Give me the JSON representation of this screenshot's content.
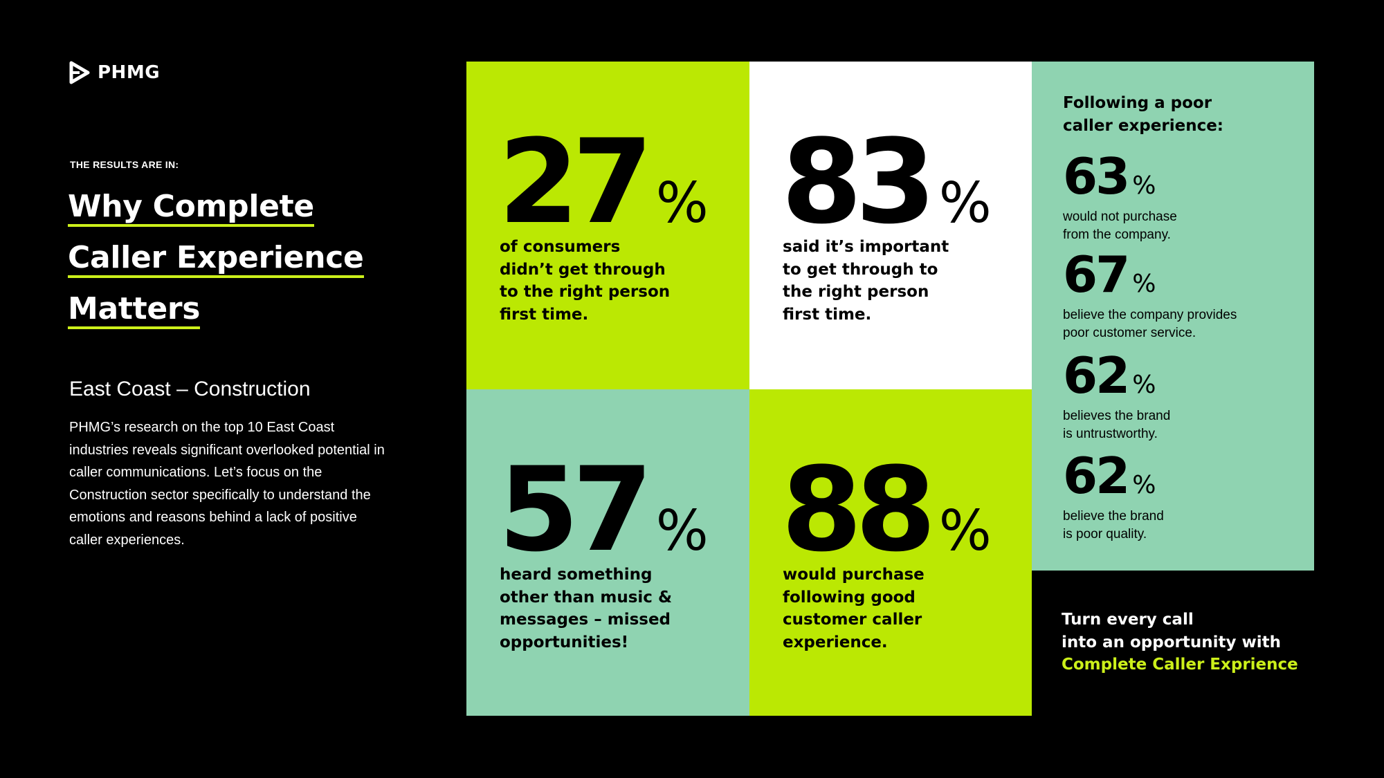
{
  "colors": {
    "background": "#000000",
    "lime": "#bbe803",
    "mint": "#8fd3b1",
    "white": "#ffffff",
    "highlight_yellow": "#ccf01a"
  },
  "logo": {
    "icon": "play-triangle-icon",
    "text": "PHMG"
  },
  "eyebrow": "THE RESULTS ARE IN:",
  "headline": {
    "lines": [
      "Why Complete",
      "Caller Experience",
      "Matters"
    ]
  },
  "subtitle": "East Coast – Construction",
  "description": "PHMG’s research on the top 10 East Coast industries reveals significant overlooked potential in caller communications. Let’s focus on the Construction sector specifically to understand the emotions and reasons behind a lack of positive caller experiences.",
  "stats": [
    {
      "value": "27",
      "unit": "%",
      "caption": [
        "of consumers",
        "didn’t get through",
        "to the right person",
        "first time."
      ]
    },
    {
      "value": "83",
      "unit": "%",
      "caption": [
        "said it’s important",
        "to get through to",
        "the right person",
        "first time."
      ]
    },
    {
      "value": "57",
      "unit": "%",
      "caption": [
        "heard something",
        "other than music &",
        "messages – missed",
        "opportunities!"
      ]
    },
    {
      "value": "88",
      "unit": "%",
      "caption": [
        "would purchase",
        "following good",
        "customer caller",
        "experience."
      ]
    }
  ],
  "poor_experience": {
    "heading": [
      "Following a poor",
      "caller experience:"
    ],
    "items": [
      {
        "value": "63",
        "unit": "%",
        "caption": [
          "would not purchase",
          "from the company."
        ]
      },
      {
        "value": "67",
        "unit": "%",
        "caption": [
          "believe the company provides",
          "poor customer service."
        ]
      },
      {
        "value": "62",
        "unit": "%",
        "caption": [
          "believes the brand",
          "is untrustworthy."
        ]
      },
      {
        "value": "62",
        "unit": "%",
        "caption": [
          "believe the brand",
          "is poor quality."
        ]
      }
    ]
  },
  "cta": {
    "lines": [
      "Turn every call",
      "into an opportunity with"
    ],
    "highlight": "Complete Caller Exprience"
  }
}
